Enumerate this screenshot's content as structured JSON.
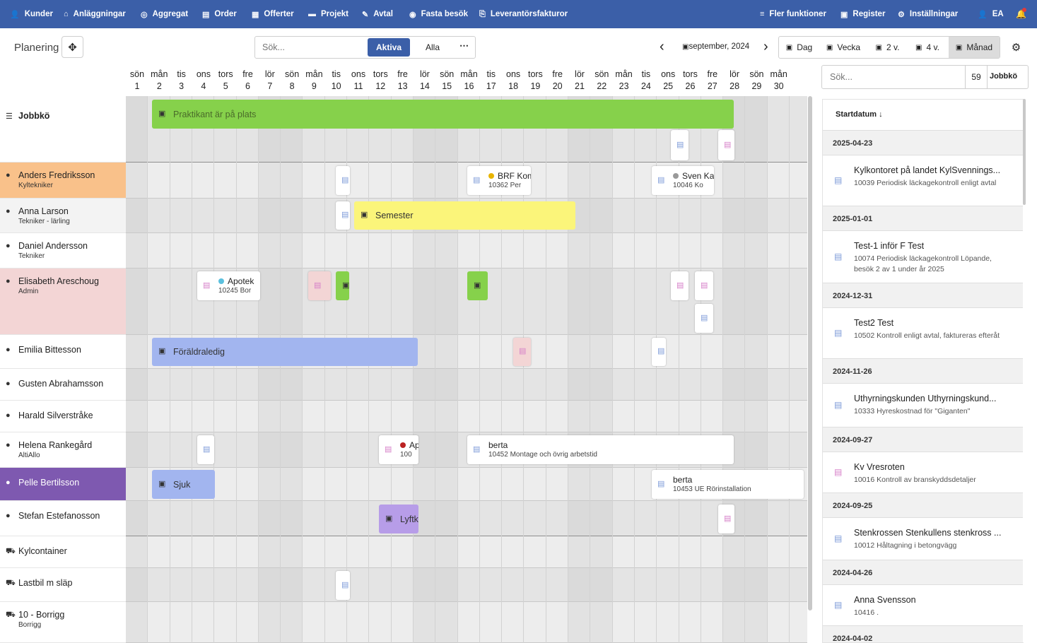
{
  "nav": {
    "left": [
      {
        "icon": "person-icon",
        "glyph": "👤",
        "label": "Kunder"
      },
      {
        "icon": "home-icon",
        "glyph": "⌂",
        "label": "Anläggningar"
      },
      {
        "icon": "aggregate-icon",
        "glyph": "◎",
        "label": "Aggregat"
      },
      {
        "icon": "order-icon",
        "glyph": "▤",
        "label": "Order"
      },
      {
        "icon": "offer-icon",
        "glyph": "▦",
        "label": "Offerter"
      },
      {
        "icon": "folder-icon",
        "glyph": "▬",
        "label": "Projekt"
      },
      {
        "icon": "contract-icon",
        "glyph": "✎",
        "label": "Avtal"
      },
      {
        "icon": "visit-icon",
        "glyph": "◉",
        "label": "Fasta besök"
      },
      {
        "icon": "invoice-icon",
        "glyph": "⎘",
        "label": "Leverantörsfakturor"
      }
    ],
    "right": [
      {
        "icon": "filter-icon",
        "glyph": "≡",
        "label": "Fler funktioner"
      },
      {
        "icon": "register-icon",
        "glyph": "▣",
        "label": "Register"
      },
      {
        "icon": "gear-icon",
        "glyph": "⚙",
        "label": "Inställningar"
      },
      {
        "icon": "user-icon",
        "glyph": "👤",
        "label": "EA"
      }
    ],
    "bell_glyph": "🔔"
  },
  "toolbar": {
    "title": "Planering",
    "search_placeholder": "Sök...",
    "active_label": "Aktiva",
    "all_label": "Alla",
    "more_glyph": "⋯",
    "prev_glyph": "‹",
    "next_glyph": "›",
    "month_label": "september, 2024",
    "views": [
      "Dag",
      "Vecka",
      "2 v.",
      "4 v.",
      "Månad"
    ],
    "active_view": "Månad"
  },
  "right_panel": {
    "search_placeholder": "Sök...",
    "count": "59",
    "queue_label": "Jobbkö",
    "sort_label": "Startdatum ↓"
  },
  "days": [
    {
      "d": "sön",
      "n": "1"
    },
    {
      "d": "mån",
      "n": "2"
    },
    {
      "d": "tis",
      "n": "3"
    },
    {
      "d": "ons",
      "n": "4"
    },
    {
      "d": "tors",
      "n": "5"
    },
    {
      "d": "fre",
      "n": "6"
    },
    {
      "d": "lör",
      "n": "7"
    },
    {
      "d": "sön",
      "n": "8"
    },
    {
      "d": "mån",
      "n": "9"
    },
    {
      "d": "tis",
      "n": "10"
    },
    {
      "d": "ons",
      "n": "11"
    },
    {
      "d": "tors",
      "n": "12"
    },
    {
      "d": "fre",
      "n": "13"
    },
    {
      "d": "lör",
      "n": "14"
    },
    {
      "d": "sön",
      "n": "15"
    },
    {
      "d": "mån",
      "n": "16"
    },
    {
      "d": "tis",
      "n": "17"
    },
    {
      "d": "ons",
      "n": "18"
    },
    {
      "d": "tors",
      "n": "19"
    },
    {
      "d": "fre",
      "n": "20"
    },
    {
      "d": "lör",
      "n": "21"
    },
    {
      "d": "sön",
      "n": "22"
    },
    {
      "d": "mån",
      "n": "23"
    },
    {
      "d": "tis",
      "n": "24"
    },
    {
      "d": "ons",
      "n": "25"
    },
    {
      "d": "tors",
      "n": "26"
    },
    {
      "d": "fre",
      "n": "27"
    },
    {
      "d": "lör",
      "n": "28"
    },
    {
      "d": "sön",
      "n": "29"
    },
    {
      "d": "mån",
      "n": "30"
    }
  ],
  "resources": [
    {
      "name": "Jobbkö",
      "role": "",
      "type": "queue"
    },
    {
      "name": "Anders Fredriksson",
      "role": "Kyltekniker",
      "type": "person"
    },
    {
      "name": "Anna Larson",
      "role": "Tekniker - lärling",
      "type": "person"
    },
    {
      "name": "Daniel Andersson",
      "role": "Tekniker",
      "type": "person"
    },
    {
      "name": "Elisabeth Areschoug",
      "role": "Admin",
      "type": "person"
    },
    {
      "name": "Emilia Bittesson",
      "role": "",
      "type": "person"
    },
    {
      "name": "Gusten Abrahamsson",
      "role": "",
      "type": "person"
    },
    {
      "name": "Harald Silverstråke",
      "role": "",
      "type": "person"
    },
    {
      "name": "Helena Rankegård",
      "role": "AltiAllo",
      "type": "person"
    },
    {
      "name": "Pelle Bertilsson",
      "role": "",
      "type": "person"
    },
    {
      "name": "Stefan Estefanosson",
      "role": "",
      "type": "person"
    },
    {
      "name": "Kylcontainer",
      "role": "",
      "type": "vehicle"
    },
    {
      "name": "Lastbil m släp",
      "role": "",
      "type": "vehicle"
    },
    {
      "name": "10 - Borrigg",
      "role": "Borrigg",
      "type": "vehicle"
    }
  ],
  "colors": {
    "nav": "#3b5fa8",
    "green": "#86d14b",
    "yellow": "#fbf57a",
    "blue": "#a2b5ef",
    "purple": "#7e59b0",
    "lavender": "#b79de8",
    "peach": "#f9c18a",
    "pink": "#f3d5d5",
    "doc_blue": "#7d9ad8",
    "doc_pink": "#d67fc8"
  },
  "events": {
    "intern": "Praktikant är på plats",
    "semester": "Semester",
    "foraldraledig": "Föräldraledig",
    "sjuk": "Sjuk",
    "lyft": "Lyftk",
    "brf_t1": "BRF Kom",
    "brf_t2": "10362 Per",
    "sven_t1": "Sven Kar",
    "sven_t2": "10046 Ko",
    "apotek_t1": "Apotek",
    "apotek_t2": "10245 Bor",
    "ap_t1": "Ap",
    "ap_t2": "100",
    "berta1_t1": "berta",
    "berta1_t2": "10452 Montage och övrig arbetstid",
    "berta2_t1": "berta",
    "berta2_t2": "10453 UE Rörinstallation"
  },
  "queue": [
    {
      "date": "2025-04-23",
      "items": [
        {
          "title": "Kylkontoret på landet KylSvennings...",
          "desc": "10039 Periodisk läckagekontroll enligt avtal",
          "doc": "blue"
        }
      ]
    },
    {
      "date": "2025-01-01",
      "items": [
        {
          "title": "Test-1 inför F Test",
          "desc": "10074 Periodisk läckagekontroll Löpande, besök 2 av 1 under år 2025",
          "doc": "blue"
        }
      ]
    },
    {
      "date": "2024-12-31",
      "items": [
        {
          "title": "Test2 Test",
          "desc": "10502 Kontroll enligt avtal, faktureras efteråt",
          "doc": "blue"
        }
      ]
    },
    {
      "date": "2024-11-26",
      "items": [
        {
          "title": "Uthyrningskunden Uthyrningskund...",
          "desc": "10333 Hyreskostnad för \"Giganten\"",
          "doc": "blue"
        }
      ]
    },
    {
      "date": "2024-09-27",
      "items": [
        {
          "title": "Kv Vresroten",
          "desc": "10016 Kontroll av branskyddsdetaljer",
          "doc": "pink"
        }
      ]
    },
    {
      "date": "2024-09-25",
      "items": [
        {
          "title": "Stenkrossen Stenkullens stenkross ...",
          "desc": "10012 Håltagning i betongvägg",
          "doc": "blue"
        }
      ]
    },
    {
      "date": "2024-04-26",
      "items": [
        {
          "title": "Anna Svensson",
          "desc": "10416 .",
          "doc": "blue"
        }
      ]
    },
    {
      "date": "2024-04-02",
      "items": []
    }
  ]
}
